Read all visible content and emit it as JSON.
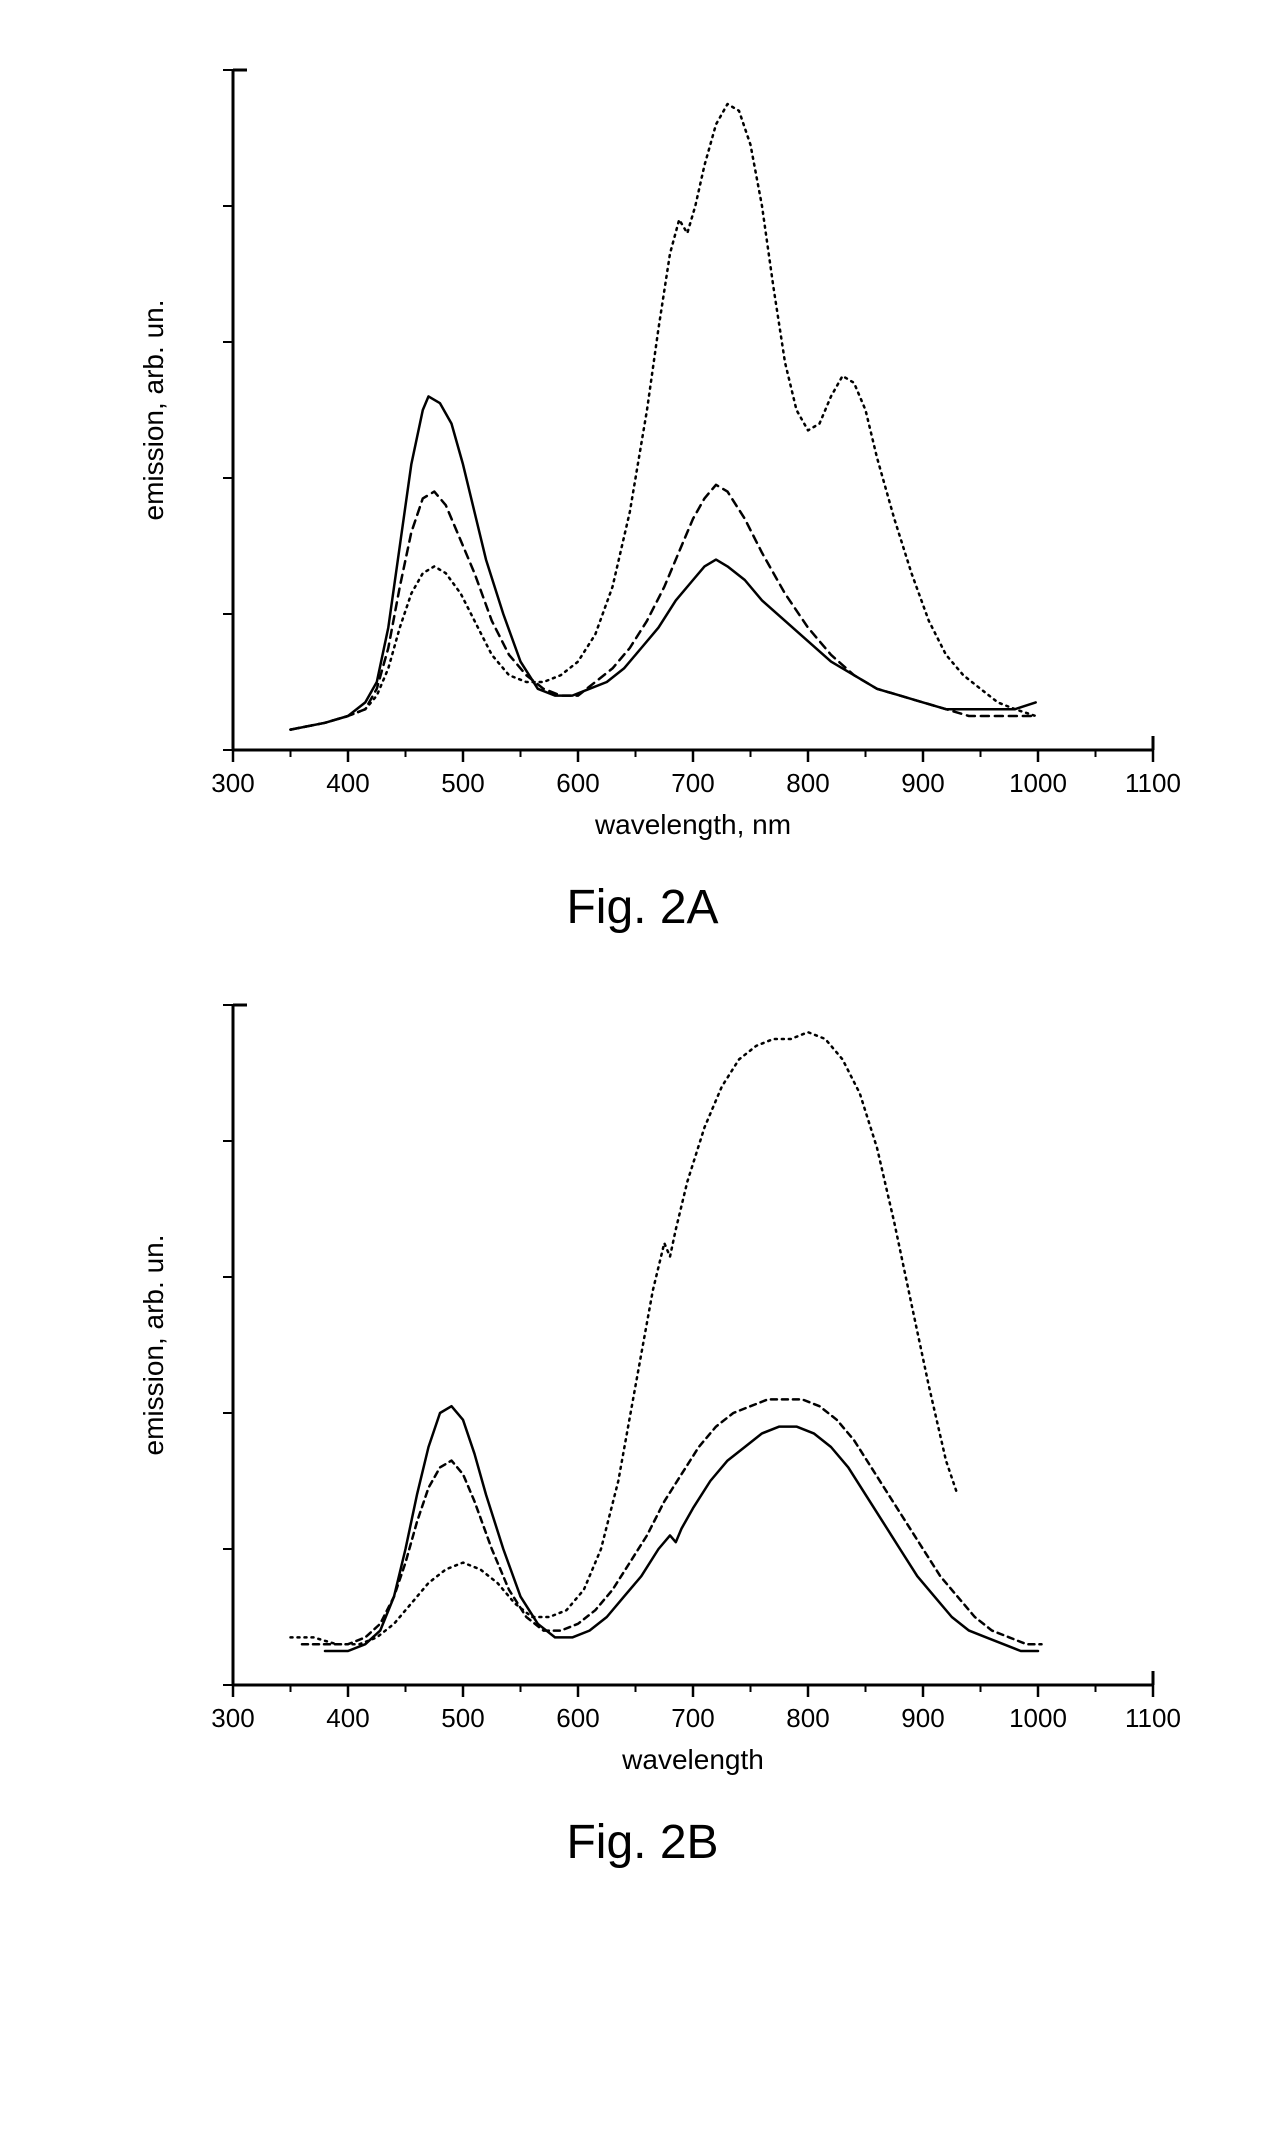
{
  "figures": [
    {
      "id": "A",
      "caption": "Fig. 2A",
      "xlabel": "wavelength, nm",
      "ylabel": "emission, arb. un.",
      "xlim": [
        300,
        1100
      ],
      "xtick_step": 100,
      "ylim": [
        0,
        100
      ],
      "axis_color": "#000000",
      "background_color": "#ffffff",
      "label_fontsize": 28,
      "tick_fontsize": 26,
      "line_width": 2.5,
      "series": [
        {
          "name": "solid",
          "dash": "none",
          "color": "#000000",
          "points": [
            [
              350,
              3
            ],
            [
              380,
              4
            ],
            [
              400,
              5
            ],
            [
              415,
              7
            ],
            [
              425,
              10
            ],
            [
              435,
              18
            ],
            [
              445,
              30
            ],
            [
              455,
              42
            ],
            [
              465,
              50
            ],
            [
              470,
              52
            ],
            [
              480,
              51
            ],
            [
              490,
              48
            ],
            [
              500,
              42
            ],
            [
              510,
              35
            ],
            [
              520,
              28
            ],
            [
              535,
              20
            ],
            [
              550,
              13
            ],
            [
              565,
              9
            ],
            [
              580,
              8
            ],
            [
              595,
              8
            ],
            [
              610,
              9
            ],
            [
              625,
              10
            ],
            [
              640,
              12
            ],
            [
              655,
              15
            ],
            [
              670,
              18
            ],
            [
              685,
              22
            ],
            [
              700,
              25
            ],
            [
              710,
              27
            ],
            [
              720,
              28
            ],
            [
              730,
              27
            ],
            [
              745,
              25
            ],
            [
              760,
              22
            ],
            [
              780,
              19
            ],
            [
              800,
              16
            ],
            [
              820,
              13
            ],
            [
              840,
              11
            ],
            [
              860,
              9
            ],
            [
              880,
              8
            ],
            [
              900,
              7
            ],
            [
              920,
              6
            ],
            [
              940,
              6
            ],
            [
              960,
              6
            ],
            [
              980,
              6
            ],
            [
              998,
              7
            ]
          ]
        },
        {
          "name": "dashed",
          "dash": "8,6",
          "color": "#000000",
          "points": [
            [
              350,
              3
            ],
            [
              380,
              4
            ],
            [
              400,
              5
            ],
            [
              415,
              6
            ],
            [
              425,
              9
            ],
            [
              435,
              15
            ],
            [
              445,
              24
            ],
            [
              455,
              32
            ],
            [
              465,
              37
            ],
            [
              475,
              38
            ],
            [
              485,
              36
            ],
            [
              495,
              32
            ],
            [
              510,
              26
            ],
            [
              525,
              19
            ],
            [
              540,
              14
            ],
            [
              555,
              11
            ],
            [
              570,
              9
            ],
            [
              585,
              8
            ],
            [
              600,
              8
            ],
            [
              615,
              10
            ],
            [
              630,
              12
            ],
            [
              645,
              15
            ],
            [
              660,
              19
            ],
            [
              675,
              24
            ],
            [
              690,
              30
            ],
            [
              700,
              34
            ],
            [
              710,
              37
            ],
            [
              720,
              39
            ],
            [
              730,
              38
            ],
            [
              745,
              34
            ],
            [
              760,
              29
            ],
            [
              780,
              23
            ],
            [
              800,
              18
            ],
            [
              820,
              14
            ],
            [
              840,
              11
            ],
            [
              860,
              9
            ],
            [
              880,
              8
            ],
            [
              900,
              7
            ],
            [
              920,
              6
            ],
            [
              940,
              5
            ],
            [
              960,
              5
            ],
            [
              980,
              5
            ],
            [
              998,
              5
            ]
          ]
        },
        {
          "name": "dotted",
          "dash": "2,5",
          "color": "#000000",
          "points": [
            [
              350,
              3
            ],
            [
              380,
              4
            ],
            [
              400,
              5
            ],
            [
              415,
              6
            ],
            [
              425,
              8
            ],
            [
              435,
              12
            ],
            [
              445,
              18
            ],
            [
              455,
              23
            ],
            [
              465,
              26
            ],
            [
              475,
              27
            ],
            [
              485,
              26
            ],
            [
              498,
              23
            ],
            [
              510,
              19
            ],
            [
              525,
              14
            ],
            [
              540,
              11
            ],
            [
              555,
              10
            ],
            [
              570,
              10
            ],
            [
              585,
              11
            ],
            [
              600,
              13
            ],
            [
              615,
              17
            ],
            [
              630,
              24
            ],
            [
              645,
              35
            ],
            [
              660,
              50
            ],
            [
              670,
              62
            ],
            [
              680,
              73
            ],
            [
              688,
              78
            ],
            [
              695,
              76
            ],
            [
              702,
              80
            ],
            [
              710,
              86
            ],
            [
              720,
              92
            ],
            [
              730,
              95
            ],
            [
              740,
              94
            ],
            [
              750,
              89
            ],
            [
              760,
              80
            ],
            [
              770,
              68
            ],
            [
              780,
              57
            ],
            [
              790,
              50
            ],
            [
              800,
              47
            ],
            [
              810,
              48
            ],
            [
              820,
              52
            ],
            [
              830,
              55
            ],
            [
              840,
              54
            ],
            [
              850,
              50
            ],
            [
              860,
              43
            ],
            [
              875,
              34
            ],
            [
              890,
              26
            ],
            [
              905,
              19
            ],
            [
              920,
              14
            ],
            [
              935,
              11
            ],
            [
              950,
              9
            ],
            [
              965,
              7
            ],
            [
              980,
              6
            ],
            [
              998,
              5
            ]
          ]
        }
      ]
    },
    {
      "id": "B",
      "caption": "Fig. 2B",
      "xlabel": "wavelength",
      "ylabel": "emission, arb. un.",
      "xlim": [
        300,
        1100
      ],
      "xtick_step": 100,
      "ylim": [
        0,
        100
      ],
      "axis_color": "#000000",
      "background_color": "#ffffff",
      "label_fontsize": 28,
      "tick_fontsize": 26,
      "line_width": 2.5,
      "series": [
        {
          "name": "solid",
          "dash": "none",
          "color": "#000000",
          "points": [
            [
              380,
              5
            ],
            [
              400,
              5
            ],
            [
              415,
              6
            ],
            [
              428,
              8
            ],
            [
              440,
              13
            ],
            [
              450,
              20
            ],
            [
              460,
              28
            ],
            [
              470,
              35
            ],
            [
              480,
              40
            ],
            [
              490,
              41
            ],
            [
              500,
              39
            ],
            [
              510,
              34
            ],
            [
              520,
              28
            ],
            [
              535,
              20
            ],
            [
              550,
              13
            ],
            [
              565,
              9
            ],
            [
              580,
              7
            ],
            [
              595,
              7
            ],
            [
              610,
              8
            ],
            [
              625,
              10
            ],
            [
              640,
              13
            ],
            [
              655,
              16
            ],
            [
              670,
              20
            ],
            [
              680,
              22
            ],
            [
              685,
              21
            ],
            [
              690,
              23
            ],
            [
              700,
              26
            ],
            [
              715,
              30
            ],
            [
              730,
              33
            ],
            [
              745,
              35
            ],
            [
              760,
              37
            ],
            [
              775,
              38
            ],
            [
              790,
              38
            ],
            [
              805,
              37
            ],
            [
              820,
              35
            ],
            [
              835,
              32
            ],
            [
              850,
              28
            ],
            [
              865,
              24
            ],
            [
              880,
              20
            ],
            [
              895,
              16
            ],
            [
              910,
              13
            ],
            [
              925,
              10
            ],
            [
              940,
              8
            ],
            [
              955,
              7
            ],
            [
              970,
              6
            ],
            [
              985,
              5
            ],
            [
              1000,
              5
            ]
          ]
        },
        {
          "name": "dashed",
          "dash": "6,5",
          "color": "#000000",
          "points": [
            [
              360,
              6
            ],
            [
              380,
              6
            ],
            [
              400,
              6
            ],
            [
              415,
              7
            ],
            [
              428,
              9
            ],
            [
              440,
              13
            ],
            [
              450,
              18
            ],
            [
              460,
              24
            ],
            [
              470,
              29
            ],
            [
              480,
              32
            ],
            [
              490,
              33
            ],
            [
              500,
              31
            ],
            [
              510,
              27
            ],
            [
              525,
              20
            ],
            [
              540,
              14
            ],
            [
              555,
              10
            ],
            [
              570,
              8
            ],
            [
              585,
              8
            ],
            [
              600,
              9
            ],
            [
              615,
              11
            ],
            [
              630,
              14
            ],
            [
              645,
              18
            ],
            [
              660,
              22
            ],
            [
              675,
              27
            ],
            [
              690,
              31
            ],
            [
              705,
              35
            ],
            [
              720,
              38
            ],
            [
              735,
              40
            ],
            [
              750,
              41
            ],
            [
              765,
              42
            ],
            [
              780,
              42
            ],
            [
              795,
              42
            ],
            [
              810,
              41
            ],
            [
              825,
              39
            ],
            [
              840,
              36
            ],
            [
              855,
              32
            ],
            [
              870,
              28
            ],
            [
              885,
              24
            ],
            [
              900,
              20
            ],
            [
              915,
              16
            ],
            [
              930,
              13
            ],
            [
              945,
              10
            ],
            [
              960,
              8
            ],
            [
              975,
              7
            ],
            [
              990,
              6
            ],
            [
              1003,
              6
            ]
          ]
        },
        {
          "name": "dotted",
          "dash": "2,5",
          "color": "#000000",
          "points": [
            [
              350,
              7
            ],
            [
              370,
              7
            ],
            [
              390,
              6
            ],
            [
              410,
              6
            ],
            [
              425,
              7
            ],
            [
              440,
              9
            ],
            [
              455,
              12
            ],
            [
              470,
              15
            ],
            [
              485,
              17
            ],
            [
              500,
              18
            ],
            [
              515,
              17
            ],
            [
              530,
              15
            ],
            [
              545,
              12
            ],
            [
              560,
              10
            ],
            [
              575,
              10
            ],
            [
              590,
              11
            ],
            [
              605,
              14
            ],
            [
              620,
              20
            ],
            [
              635,
              30
            ],
            [
              650,
              44
            ],
            [
              665,
              58
            ],
            [
              675,
              65
            ],
            [
              680,
              63
            ],
            [
              685,
              67
            ],
            [
              695,
              74
            ],
            [
              710,
              82
            ],
            [
              725,
              88
            ],
            [
              740,
              92
            ],
            [
              755,
              94
            ],
            [
              770,
              95
            ],
            [
              785,
              95
            ],
            [
              800,
              96
            ],
            [
              815,
              95
            ],
            [
              830,
              92
            ],
            [
              845,
              87
            ],
            [
              860,
              79
            ],
            [
              875,
              68
            ],
            [
              890,
              56
            ],
            [
              905,
              44
            ],
            [
              920,
              33
            ],
            [
              930,
              28
            ]
          ]
        }
      ]
    }
  ]
}
